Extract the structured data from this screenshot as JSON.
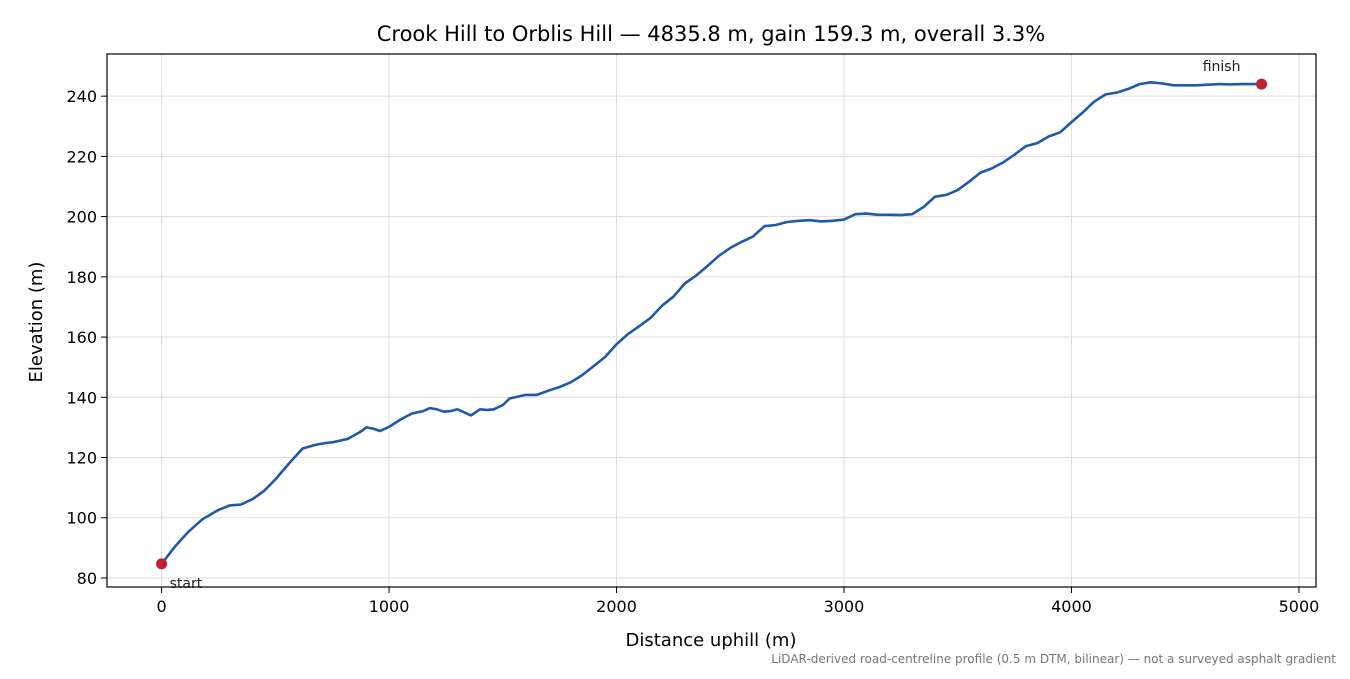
{
  "chart_data": {
    "type": "line",
    "title": "Crook Hill to Orblis Hill — 4835.8 m, gain 159.3 m, overall 3.3%",
    "xlabel": "Distance uphill (m)",
    "ylabel": "Elevation (m)",
    "xlim": [
      -240,
      5075
    ],
    "ylim": [
      77,
      254
    ],
    "xticks": [
      0,
      1000,
      2000,
      3000,
      4000,
      5000
    ],
    "yticks": [
      80,
      100,
      120,
      140,
      160,
      180,
      200,
      220,
      240
    ],
    "grid": true,
    "series": [
      {
        "color": "#1f5aa8",
        "x": [
          0,
          60,
          120,
          180,
          250,
          300,
          350,
          400,
          450,
          500,
          560,
          620,
          680,
          720,
          760,
          820,
          880,
          900,
          930,
          960,
          1000,
          1050,
          1100,
          1150,
          1180,
          1210,
          1240,
          1270,
          1300,
          1330,
          1360,
          1400,
          1430,
          1460,
          1500,
          1530,
          1560,
          1600,
          1650,
          1700,
          1750,
          1800,
          1850,
          1900,
          1950,
          2000,
          2050,
          2100,
          2150,
          2200,
          2250,
          2300,
          2350,
          2400,
          2450,
          2500,
          2550,
          2600,
          2650,
          2700,
          2750,
          2800,
          2850,
          2900,
          2950,
          3000,
          3050,
          3100,
          3150,
          3200,
          3250,
          3300,
          3350,
          3400,
          3450,
          3500,
          3550,
          3600,
          3650,
          3700,
          3750,
          3800,
          3850,
          3900,
          3950,
          4000,
          4050,
          4100,
          4150,
          4200,
          4250,
          4300,
          4350,
          4400,
          4450,
          4500,
          4550,
          4600,
          4650,
          4700,
          4750,
          4800,
          4835.8
        ],
        "y": [
          84.7,
          90.5,
          95.5,
          99.5,
          102.6,
          104.1,
          104.4,
          106.2,
          108.9,
          112.7,
          118.0,
          123.0,
          124.3,
          124.8,
          125.2,
          126.2,
          128.8,
          130.0,
          129.6,
          128.8,
          130.2,
          132.6,
          134.6,
          135.4,
          136.4,
          136.0,
          135.2,
          135.4,
          136.0,
          135.0,
          134.0,
          136.0,
          135.8,
          136.0,
          137.4,
          139.6,
          140.1,
          140.8,
          140.8,
          142.2,
          143.4,
          145.0,
          147.4,
          150.4,
          153.4,
          157.6,
          161.0,
          163.6,
          166.4,
          170.4,
          173.4,
          177.8,
          180.4,
          183.6,
          187.0,
          189.6,
          191.6,
          193.4,
          196.8,
          197.2,
          198.2,
          198.6,
          198.8,
          198.4,
          198.6,
          199.0,
          200.8,
          201.0,
          200.6,
          200.6,
          200.5,
          200.8,
          203.2,
          206.6,
          207.2,
          208.8,
          211.6,
          214.6,
          216.0,
          218.0,
          220.6,
          223.4,
          224.4,
          226.6,
          228.0,
          231.4,
          234.6,
          238.2,
          240.6,
          241.2,
          242.4,
          244.0,
          244.6,
          244.2,
          243.6,
          243.6,
          243.6,
          243.8,
          244.0,
          243.9,
          244.0,
          244.0,
          244.0
        ]
      }
    ],
    "annotations": [
      {
        "text": "start",
        "x": 0,
        "y": 84.7,
        "color": "#c0202f"
      },
      {
        "text": "finish",
        "x": 4835.8,
        "y": 244.0,
        "color": "#c0202f"
      }
    ]
  },
  "footnote": "LiDAR-derived road-centreline profile (0.5 m DTM, bilinear) — not a surveyed asphalt gradient"
}
